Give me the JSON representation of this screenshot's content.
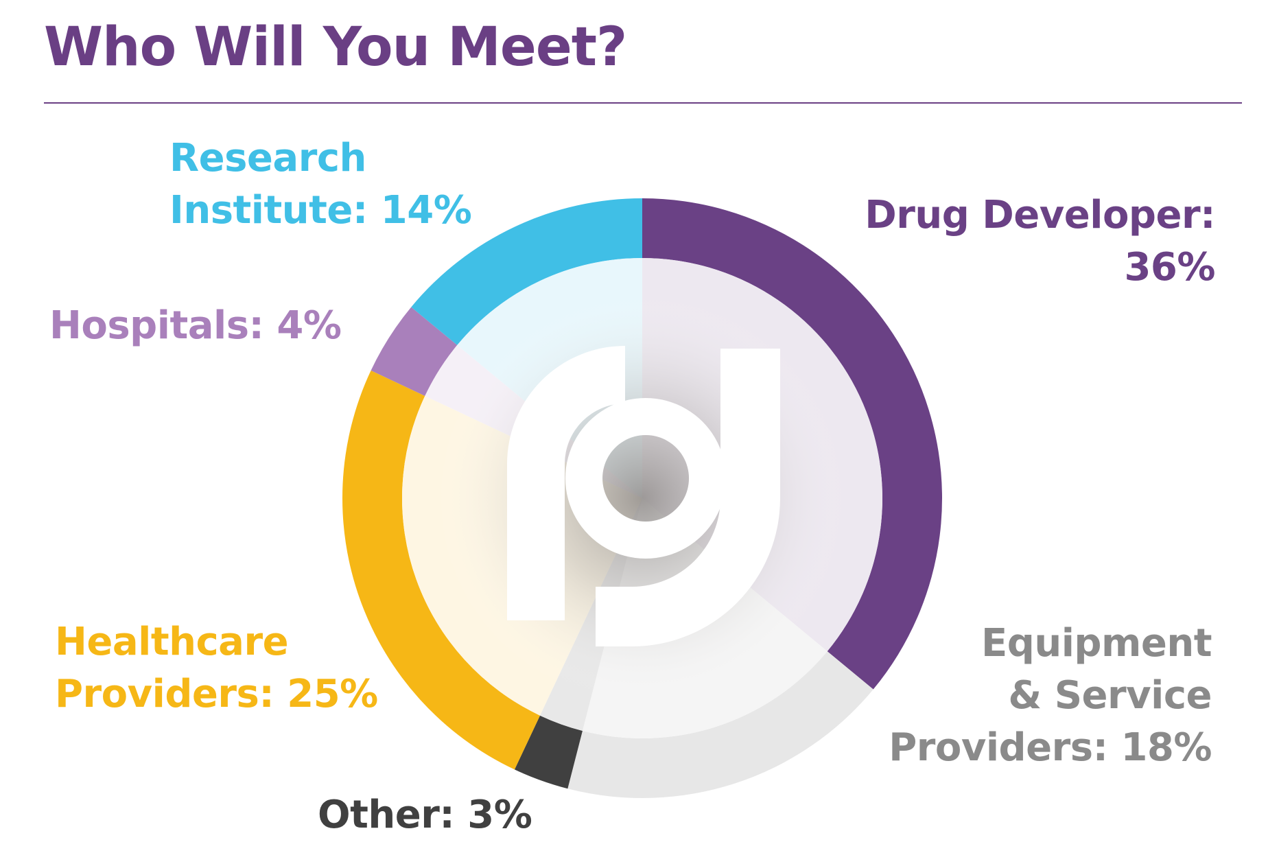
{
  "title": "Who Will You Meet?",
  "colors": {
    "title": "#6a3f84",
    "rule": "#6a3f84",
    "logo": "#ffffff",
    "inner_tint": "#f0eff3",
    "center_shade": "#9a9797"
  },
  "labels": {
    "research": [
      "Research",
      "Institute: 14%"
    ],
    "hospitals": [
      "Hospitals: 4%"
    ],
    "drug": [
      "Drug Developer:",
      "36%"
    ],
    "healthcare": [
      "Healthcare",
      "Providers: 25%"
    ],
    "equipment": [
      "Equipment",
      "& Service",
      "Providers: 18%"
    ],
    "other": [
      "Other: 3%"
    ]
  },
  "logo_icon": "rd-monogram-logo",
  "chart_data": {
    "type": "pie",
    "style": "donut",
    "title": "Who Will You Meet?",
    "slices": [
      {
        "name": "Drug Developer",
        "value": 36,
        "color": "#6a4185"
      },
      {
        "name": "Equipment & Service Providers",
        "value": 18,
        "color": "#e7e7e7"
      },
      {
        "name": "Other",
        "value": 3,
        "color": "#404040"
      },
      {
        "name": "Healthcare Providers",
        "value": 25,
        "color": "#f6b716"
      },
      {
        "name": "Hospitals",
        "value": 4,
        "color": "#a980bb"
      },
      {
        "name": "Research Institute",
        "value": 14,
        "color": "#40bfe6"
      }
    ],
    "legend": "labels around chart"
  }
}
